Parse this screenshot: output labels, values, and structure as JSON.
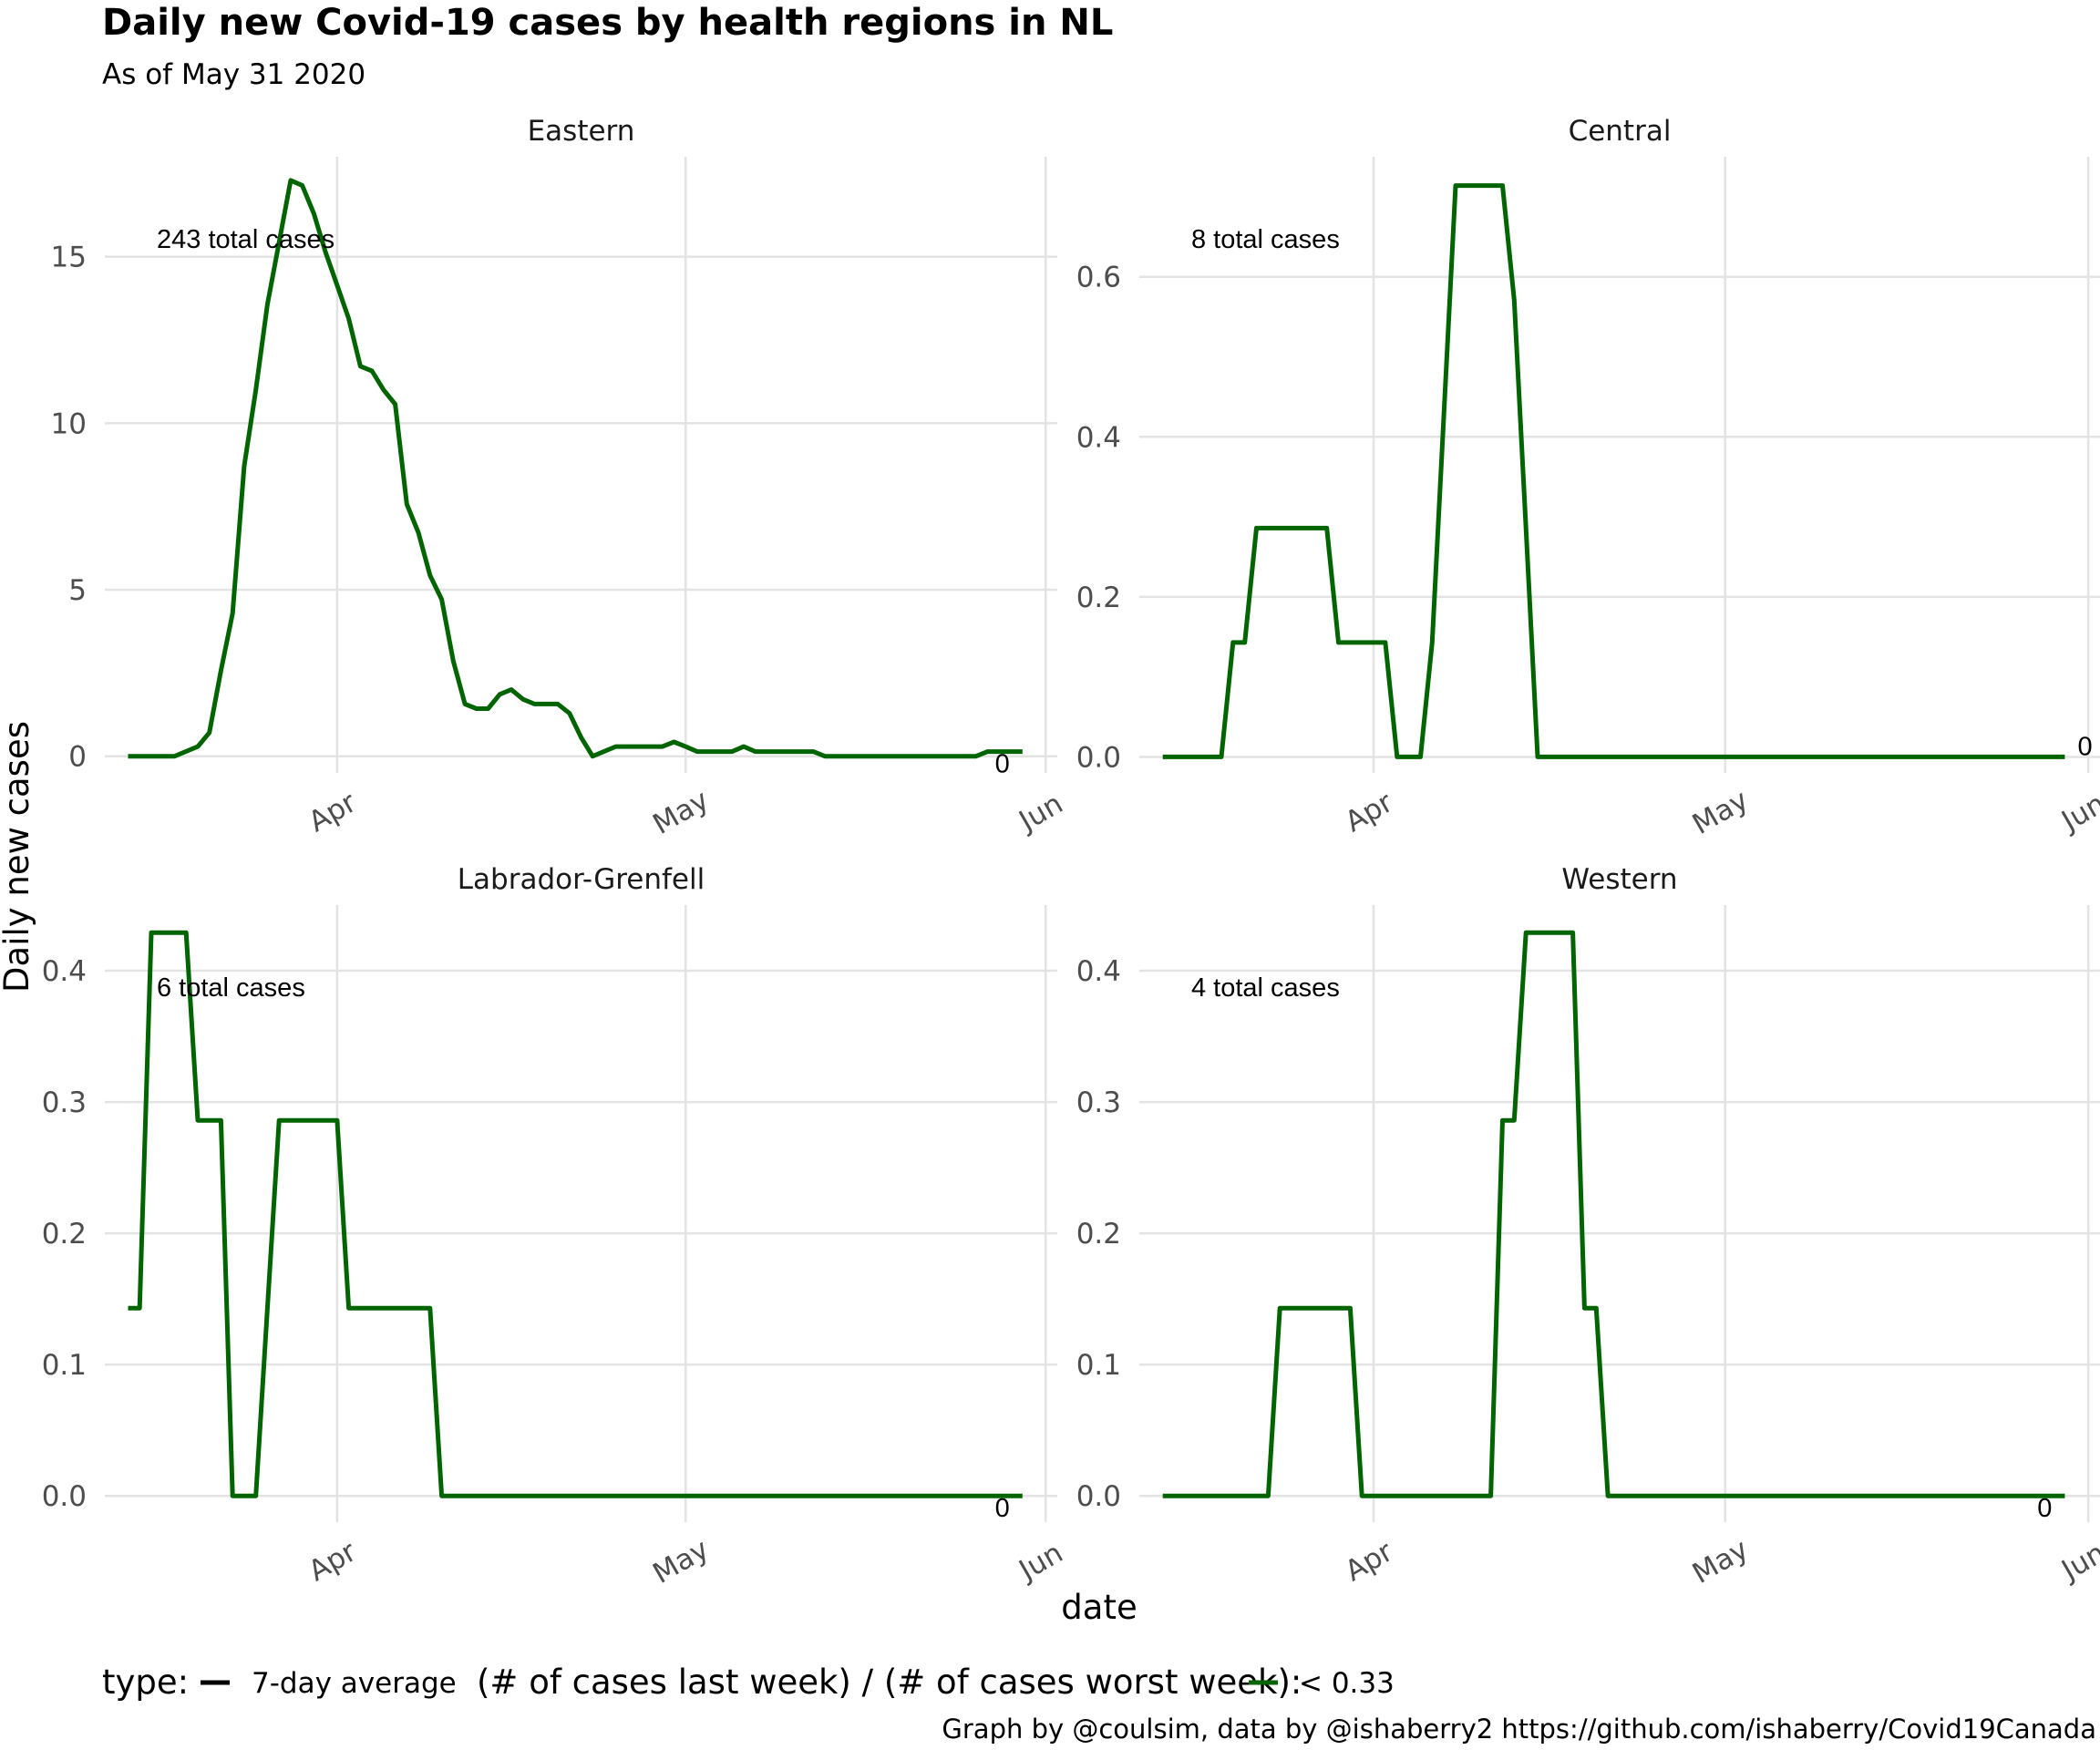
{
  "title": "Daily new Covid-19 cases by health regions in NL",
  "subtitle": "As of May 31 2020",
  "caption": "Graph by @coulsim, data by @ishaberry2 https://github.com/ishaberry/Covid19Canada",
  "colors": {
    "line": "#006400",
    "grid": "#e3e3e3",
    "text": "#000000",
    "tick": "#4d4d4d"
  },
  "chart_data": {
    "type": "line",
    "xlabel": "date",
    "ylabel": "Daily new cases",
    "x_ticks": [
      "Apr",
      "May",
      "Jun"
    ],
    "grid": true,
    "legend": {
      "placement": "bottom",
      "type_title": "type:",
      "type_label": "7-day average",
      "ratio_title": "(# of cases last week) / (# of cases worst week):",
      "ratio_label": "< 0.33"
    },
    "panels": [
      {
        "name": "Eastern",
        "annotation": "243 total cases",
        "end_label": "0",
        "ylim": [
          -0.5,
          18
        ],
        "y_ticks": [
          0,
          5,
          10,
          15
        ],
        "y_tick_labels": [
          "0",
          "5",
          "10",
          "15"
        ],
        "points": [
          [
            "2020-03-14",
            0
          ],
          [
            "2020-03-18",
            0
          ],
          [
            "2020-03-20",
            0.29
          ],
          [
            "2020-03-21",
            0.71
          ],
          [
            "2020-03-22",
            2.57
          ],
          [
            "2020-03-23",
            4.29
          ],
          [
            "2020-03-24",
            8.71
          ],
          [
            "2020-03-25",
            11
          ],
          [
            "2020-03-26",
            13.57
          ],
          [
            "2020-03-27",
            15.43
          ],
          [
            "2020-03-28",
            17.29
          ],
          [
            "2020-03-29",
            17.14
          ],
          [
            "2020-03-30",
            16.29
          ],
          [
            "2020-03-31",
            15.14
          ],
          [
            "2020-04-01",
            14.14
          ],
          [
            "2020-04-02",
            13.14
          ],
          [
            "2020-04-03",
            11.71
          ],
          [
            "2020-04-04",
            11.57
          ],
          [
            "2020-04-05",
            11
          ],
          [
            "2020-04-06",
            10.57
          ],
          [
            "2020-04-07",
            7.57
          ],
          [
            "2020-04-08",
            6.71
          ],
          [
            "2020-04-09",
            5.43
          ],
          [
            "2020-04-10",
            4.71
          ],
          [
            "2020-04-11",
            2.86
          ],
          [
            "2020-04-12",
            1.57
          ],
          [
            "2020-04-13",
            1.43
          ],
          [
            "2020-04-14",
            1.43
          ],
          [
            "2020-04-15",
            1.86
          ],
          [
            "2020-04-16",
            2
          ],
          [
            "2020-04-17",
            1.71
          ],
          [
            "2020-04-18",
            1.57
          ],
          [
            "2020-04-20",
            1.57
          ],
          [
            "2020-04-21",
            1.29
          ],
          [
            "2020-04-22",
            0.57
          ],
          [
            "2020-04-23",
            0
          ],
          [
            "2020-04-25",
            0.29
          ],
          [
            "2020-04-29",
            0.29
          ],
          [
            "2020-04-30",
            0.43
          ],
          [
            "2020-05-01",
            0.29
          ],
          [
            "2020-05-02",
            0.14
          ],
          [
            "2020-05-05",
            0.14
          ],
          [
            "2020-05-06",
            0.29
          ],
          [
            "2020-05-07",
            0.14
          ],
          [
            "2020-05-12",
            0.14
          ],
          [
            "2020-05-13",
            0
          ],
          [
            "2020-05-26",
            0
          ],
          [
            "2020-05-27",
            0.14
          ],
          [
            "2020-05-30",
            0.14
          ]
        ]
      },
      {
        "name": "Central",
        "annotation": "8 total cases",
        "end_label": "0",
        "ylim": [
          -0.02,
          0.75
        ],
        "y_ticks": [
          0,
          0.2,
          0.4,
          0.6
        ],
        "y_tick_labels": [
          "0.0",
          "0.2",
          "0.4",
          "0.6"
        ],
        "points": [
          [
            "2020-03-14",
            0
          ],
          [
            "2020-03-19",
            0
          ],
          [
            "2020-03-20",
            0.143
          ],
          [
            "2020-03-21",
            0.143
          ],
          [
            "2020-03-22",
            0.286
          ],
          [
            "2020-03-28",
            0.286
          ],
          [
            "2020-03-29",
            0.143
          ],
          [
            "2020-04-02",
            0.143
          ],
          [
            "2020-04-03",
            0
          ],
          [
            "2020-04-05",
            0
          ],
          [
            "2020-04-06",
            0.143
          ],
          [
            "2020-04-07",
            0.429
          ],
          [
            "2020-04-08",
            0.714
          ],
          [
            "2020-04-12",
            0.714
          ],
          [
            "2020-04-13",
            0.571
          ],
          [
            "2020-04-14",
            0.286
          ],
          [
            "2020-04-15",
            0
          ],
          [
            "2020-05-30",
            0
          ]
        ]
      },
      {
        "name": "Labrador-Grenfell",
        "annotation": "6 total cases",
        "end_label": "0",
        "ylim": [
          -0.02,
          0.45
        ],
        "y_ticks": [
          0,
          0.1,
          0.2,
          0.3,
          0.4
        ],
        "y_tick_labels": [
          "0.0",
          "0.1",
          "0.2",
          "0.3",
          "0.4"
        ],
        "points": [
          [
            "2020-03-14",
            0.143
          ],
          [
            "2020-03-15",
            0.143
          ],
          [
            "2020-03-16",
            0.429
          ],
          [
            "2020-03-19",
            0.429
          ],
          [
            "2020-03-20",
            0.286
          ],
          [
            "2020-03-22",
            0.286
          ],
          [
            "2020-03-23",
            0
          ],
          [
            "2020-03-25",
            0
          ],
          [
            "2020-03-26",
            0.143
          ],
          [
            "2020-03-27",
            0.286
          ],
          [
            "2020-04-01",
            0.286
          ],
          [
            "2020-04-02",
            0.143
          ],
          [
            "2020-04-09",
            0.143
          ],
          [
            "2020-04-10",
            0
          ],
          [
            "2020-05-30",
            0
          ]
        ]
      },
      {
        "name": "Western",
        "annotation": "4 total cases",
        "end_label": "0",
        "ylim": [
          -0.02,
          0.45
        ],
        "y_ticks": [
          0,
          0.1,
          0.2,
          0.3,
          0.4
        ],
        "y_tick_labels": [
          "0.0",
          "0.1",
          "0.2",
          "0.3",
          "0.4"
        ],
        "points": [
          [
            "2020-03-14",
            0
          ],
          [
            "2020-03-23",
            0
          ],
          [
            "2020-03-24",
            0.143
          ],
          [
            "2020-03-30",
            0.143
          ],
          [
            "2020-03-31",
            0
          ],
          [
            "2020-04-11",
            0
          ],
          [
            "2020-04-12",
            0.286
          ],
          [
            "2020-04-13",
            0.286
          ],
          [
            "2020-04-14",
            0.429
          ],
          [
            "2020-04-18",
            0.429
          ],
          [
            "2020-04-19",
            0.143
          ],
          [
            "2020-04-20",
            0.143
          ],
          [
            "2020-04-21",
            0
          ],
          [
            "2020-05-30",
            0
          ]
        ]
      }
    ]
  }
}
